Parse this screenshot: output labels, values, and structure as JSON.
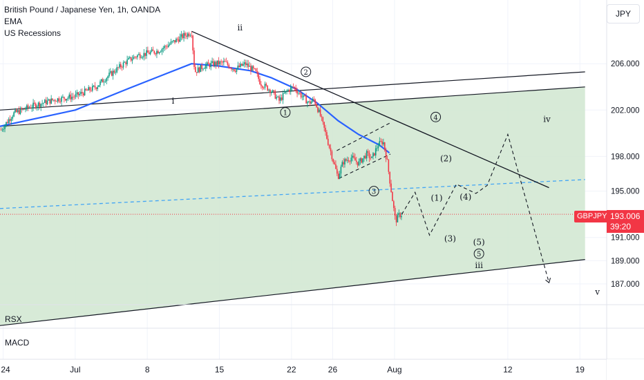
{
  "legend": {
    "title": "British Pound / Japanese Yen, 1h, OANDA",
    "indicator_1": "EMA",
    "indicator_2": "US Recessions"
  },
  "currency_button": "JPY",
  "panes": {
    "rsx": "RSX",
    "macd": "MACD"
  },
  "price_tag": {
    "symbol": "GBPJPY",
    "price": "193.006",
    "countdown": "39:20",
    "color": "#f23645"
  },
  "colors": {
    "ema": "#2962ff",
    "channel_fill": "#d3e8d3",
    "candle_up": "#089981",
    "candle_down": "#f23645",
    "projection_line": "#42a5f5"
  },
  "chart_data": {
    "type": "candlestick",
    "title": "British Pound / Japanese Yen, 1h, OANDA",
    "y_axis": {
      "ticks": [
        "206.000",
        "202.000",
        "198.000",
        "195.000",
        "191.000",
        "189.000",
        "187.000"
      ],
      "tick_values": [
        206.0,
        202.0,
        198.0,
        195.0,
        191.0,
        189.0,
        187.0
      ],
      "range": [
        185.2,
        211.5
      ]
    },
    "x_axis": {
      "ticks": [
        "24",
        "Jul",
        "8",
        "15",
        "22",
        "26",
        "Aug",
        "12",
        "19"
      ],
      "tick_days": [
        -7,
        0,
        7,
        14,
        21,
        25,
        31,
        42,
        49
      ],
      "range_days": [
        -7.3,
        51.6
      ]
    },
    "last_price": 193.006,
    "price_path": [
      [
        -7.2,
        200.3
      ],
      [
        -6,
        201.7
      ],
      [
        -4,
        202.4
      ],
      [
        -2,
        202.9
      ],
      [
        0,
        203.2
      ],
      [
        2,
        204.0
      ],
      [
        3,
        204.8
      ],
      [
        4,
        205.5
      ],
      [
        5,
        206.2
      ],
      [
        6,
        206.7
      ],
      [
        7,
        206.9
      ],
      [
        8,
        207.1
      ],
      [
        9,
        207.6
      ],
      [
        10.5,
        208.4
      ],
      [
        11.3,
        208.7
      ],
      [
        11.6,
        205.3
      ],
      [
        12.5,
        205.8
      ],
      [
        13.5,
        206.0
      ],
      [
        14.5,
        206.1
      ],
      [
        15.5,
        205.5
      ],
      [
        16.5,
        206.0
      ],
      [
        17.5,
        205.3
      ],
      [
        18,
        204.3
      ],
      [
        19,
        203.7
      ],
      [
        19.8,
        202.8
      ],
      [
        20.5,
        203.6
      ],
      [
        21.2,
        204.0
      ],
      [
        22,
        203.2
      ],
      [
        22.7,
        202.6
      ],
      [
        23.2,
        202.9
      ],
      [
        23.8,
        201.5
      ],
      [
        24.3,
        200.0
      ],
      [
        25,
        197.8
      ],
      [
        25.5,
        196.2
      ],
      [
        26,
        197.5
      ],
      [
        26.8,
        197.9
      ],
      [
        27.5,
        197.4
      ],
      [
        28.3,
        198.2
      ],
      [
        28.8,
        197.8
      ],
      [
        29.4,
        199.0
      ],
      [
        29.9,
        199.3
      ],
      [
        30.3,
        197.5
      ],
      [
        30.7,
        194.9
      ],
      [
        30.9,
        193.6
      ],
      [
        31.1,
        192.4
      ],
      [
        31.4,
        192.9
      ],
      [
        31.7,
        193.0
      ]
    ],
    "ema_path": [
      [
        -7.3,
        200.6
      ],
      [
        0,
        202.0
      ],
      [
        5,
        203.8
      ],
      [
        9,
        205.2
      ],
      [
        11.3,
        206.0
      ],
      [
        14,
        205.8
      ],
      [
        17,
        205.4
      ],
      [
        19,
        204.8
      ],
      [
        21.5,
        203.8
      ],
      [
        23.5,
        202.6
      ],
      [
        25.5,
        201.1
      ],
      [
        27.5,
        199.9
      ],
      [
        29.5,
        199.0
      ],
      [
        30.5,
        198.3
      ]
    ],
    "channel": {
      "upper": [
        [
          -7.3,
          200.6
        ],
        [
          49.5,
          204.0
        ]
      ],
      "lower": [
        [
          -7.3,
          183.4
        ],
        [
          49.5,
          189.1
        ]
      ]
    },
    "upper_parallel": [
      [
        -7.3,
        202.0
      ],
      [
        49.5,
        205.3
      ]
    ],
    "trendline": [
      [
        11.3,
        208.8
      ],
      [
        46.0,
        195.3
      ]
    ],
    "projection_line": [
      [
        -7.3,
        193.5
      ],
      [
        49.5,
        196.0
      ]
    ],
    "wedge": [
      [
        [
          25.4,
          198.5
        ],
        [
          30.6,
          200.9
        ]
      ],
      [
        [
          25.6,
          196.1
        ],
        [
          30.6,
          198.2
        ]
      ]
    ],
    "wave_projection": [
      [
        31.7,
        193.0
      ],
      [
        33.0,
        194.9
      ],
      [
        34.4,
        191.2
      ],
      [
        37.0,
        195.6
      ],
      [
        38.9,
        194.8
      ],
      [
        40.0,
        195.5
      ],
      [
        42.0,
        199.9
      ],
      [
        46.0,
        187.1
      ]
    ],
    "wave_labels": [
      {
        "text": "i",
        "x": 9.5,
        "y": 202.8,
        "style": "plain"
      },
      {
        "text": "ii",
        "x": 16,
        "y": 209.1,
        "style": "plain"
      },
      {
        "text": "1",
        "x": 20.4,
        "y": 201.8,
        "style": "circle"
      },
      {
        "text": "2",
        "x": 22.4,
        "y": 205.3,
        "style": "circle"
      },
      {
        "text": "3",
        "x": 29.0,
        "y": 195.0,
        "style": "circle"
      },
      {
        "text": "4",
        "x": 35.0,
        "y": 201.4,
        "style": "circle"
      },
      {
        "text": "(1)",
        "x": 35.1,
        "y": 194.4,
        "style": "plain"
      },
      {
        "text": "(2)",
        "x": 36.0,
        "y": 197.8,
        "style": "plain"
      },
      {
        "text": "(3)",
        "x": 36.4,
        "y": 190.9,
        "style": "plain"
      },
      {
        "text": "(4)",
        "x": 37.9,
        "y": 194.5,
        "style": "plain"
      },
      {
        "text": "(5)",
        "x": 39.2,
        "y": 190.6,
        "style": "plain"
      },
      {
        "text": "5",
        "x": 39.2,
        "y": 189.6,
        "style": "circle"
      },
      {
        "text": "iii",
        "x": 39.2,
        "y": 188.6,
        "style": "plain"
      },
      {
        "text": "iv",
        "x": 45.8,
        "y": 201.2,
        "style": "plain"
      },
      {
        "text": "v",
        "x": 50.7,
        "y": 186.3,
        "style": "plain"
      }
    ]
  }
}
